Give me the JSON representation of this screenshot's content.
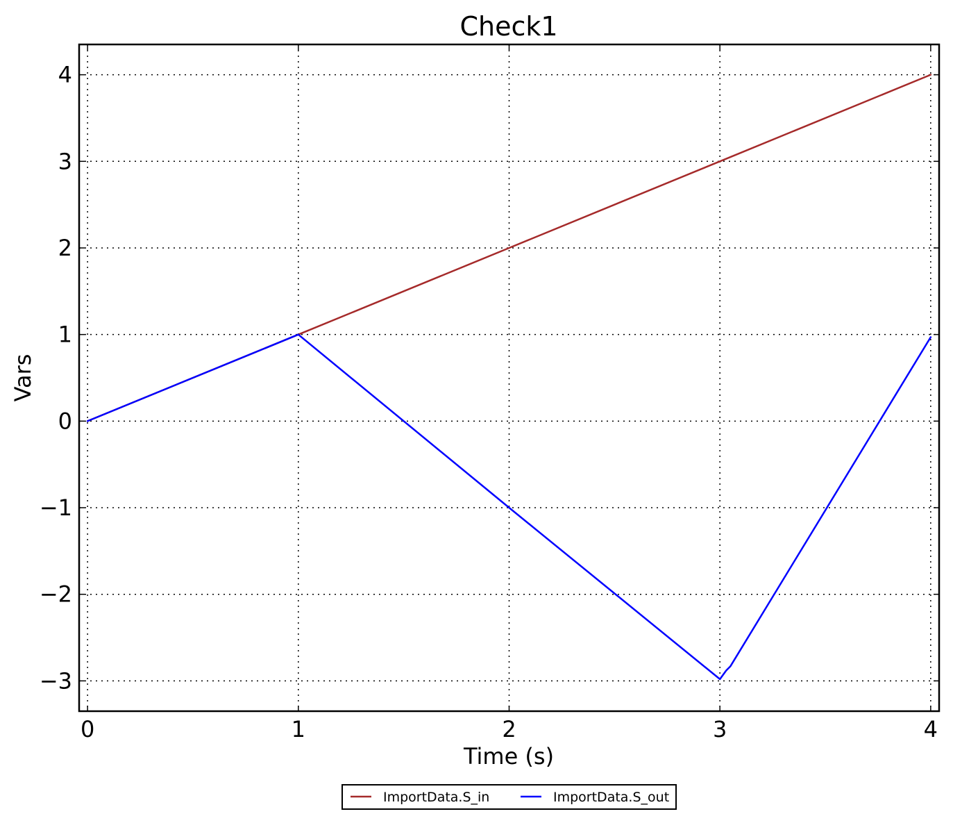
{
  "chart_data": {
    "type": "line",
    "title": "Check1",
    "xlabel": "Time (s)",
    "ylabel": "Vars",
    "xlim": [
      -0.04,
      4.04
    ],
    "ylim": [
      -3.35,
      4.35
    ],
    "xticks": [
      0,
      1,
      2,
      3,
      4
    ],
    "yticks": [
      -3,
      -2,
      -1,
      0,
      1,
      2,
      3,
      4
    ],
    "xtick_labels": [
      "0",
      "1",
      "2",
      "3",
      "4"
    ],
    "ytick_labels": [
      "−3",
      "−2",
      "−1",
      "0",
      "1",
      "2",
      "3",
      "4"
    ],
    "grid": true,
    "legend_position": "bottom-center",
    "series": [
      {
        "name": "ImportData.S_in",
        "color": "#a52a2a",
        "x": [
          0,
          1,
          2,
          3,
          4
        ],
        "y": [
          0,
          1,
          2,
          3,
          4
        ]
      },
      {
        "name": "ImportData.S_out",
        "color": "#0000ff",
        "x": [
          0,
          1,
          2,
          3.0,
          3.03,
          3.05,
          4
        ],
        "y": [
          0,
          1,
          -1,
          -2.98,
          -2.88,
          -2.83,
          0.97
        ]
      }
    ]
  }
}
